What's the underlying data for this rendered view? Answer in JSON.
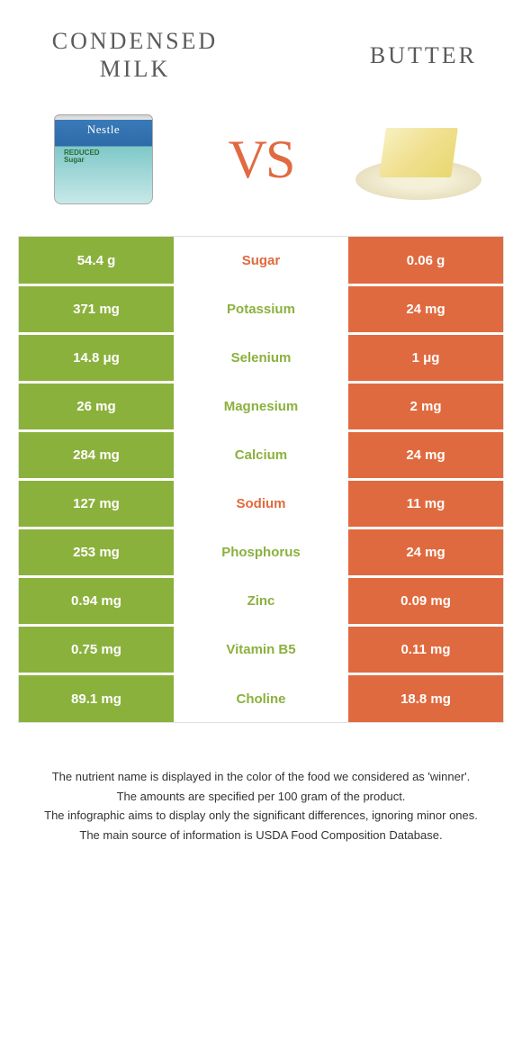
{
  "colors": {
    "green": "#8bb13d",
    "orange": "#e06a3f",
    "label_green": "#8bb13d",
    "label_orange": "#e06a3f"
  },
  "header": {
    "left_title_line1": "CONDENSED",
    "left_title_line2": "MILK",
    "right_title": "BUTTER",
    "vs": "VS"
  },
  "rows": [
    {
      "left": "54.4 g",
      "label": "Sugar",
      "right": "0.06 g",
      "winner": "orange"
    },
    {
      "left": "371 mg",
      "label": "Potassium",
      "right": "24 mg",
      "winner": "green"
    },
    {
      "left": "14.8 μg",
      "label": "Selenium",
      "right": "1 μg",
      "winner": "green"
    },
    {
      "left": "26 mg",
      "label": "Magnesium",
      "right": "2 mg",
      "winner": "green"
    },
    {
      "left": "284 mg",
      "label": "Calcium",
      "right": "24 mg",
      "winner": "green"
    },
    {
      "left": "127 mg",
      "label": "Sodium",
      "right": "11 mg",
      "winner": "orange"
    },
    {
      "left": "253 mg",
      "label": "Phosphorus",
      "right": "24 mg",
      "winner": "green"
    },
    {
      "left": "0.94 mg",
      "label": "Zinc",
      "right": "0.09 mg",
      "winner": "green"
    },
    {
      "left": "0.75 mg",
      "label": "Vitamin B5",
      "right": "0.11 mg",
      "winner": "green"
    },
    {
      "left": "89.1 mg",
      "label": "Choline",
      "right": "18.8 mg",
      "winner": "green"
    }
  ],
  "footnotes": [
    "The nutrient name is displayed in the color of the food we considered as 'winner'.",
    "The amounts are specified per 100 gram of the product.",
    "The infographic aims to display only the significant differences, ignoring minor ones.",
    "The main source of information is USDA Food Composition Database."
  ]
}
